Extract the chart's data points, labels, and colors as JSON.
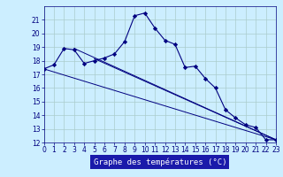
{
  "title": "Graphe des températures (°C)",
  "bg_color": "#cceeff",
  "grid_color": "#aacccc",
  "line_color": "#000080",
  "ylim": [
    12,
    22
  ],
  "xlim": [
    0,
    23
  ],
  "yticks": [
    12,
    13,
    14,
    15,
    16,
    17,
    18,
    19,
    20,
    21
  ],
  "xticks": [
    0,
    1,
    2,
    3,
    4,
    5,
    6,
    7,
    8,
    9,
    10,
    11,
    12,
    13,
    14,
    15,
    16,
    17,
    18,
    19,
    20,
    21,
    22,
    23
  ],
  "series1_x": [
    0,
    1,
    2,
    3,
    4,
    5,
    6,
    7,
    8,
    9,
    10,
    11,
    12,
    13,
    14,
    15,
    16,
    17,
    18,
    19,
    20,
    21,
    22,
    23
  ],
  "series1_y": [
    17.4,
    17.7,
    18.9,
    18.8,
    17.8,
    18.0,
    18.2,
    18.5,
    19.4,
    21.3,
    21.5,
    20.4,
    19.5,
    19.2,
    17.5,
    17.6,
    16.7,
    16.0,
    14.4,
    13.8,
    13.3,
    13.1,
    12.2,
    12.2
  ],
  "trend_lines": [
    {
      "x": [
        0,
        23
      ],
      "y": [
        17.4,
        12.2
      ]
    },
    {
      "x": [
        3,
        23
      ],
      "y": [
        18.9,
        12.2
      ]
    },
    {
      "x": [
        5,
        23
      ],
      "y": [
        18.15,
        12.2
      ]
    }
  ],
  "xlabel_color": "#000080",
  "xlabel_bg": "#1a1aaa",
  "tick_fontsize": 5.5,
  "xlabel_fontsize": 6.5
}
